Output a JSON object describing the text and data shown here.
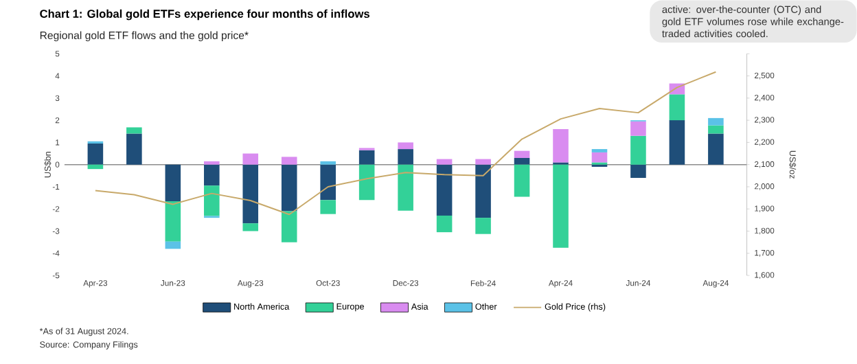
{
  "chart_data": {
    "type": "bar",
    "stacked": true,
    "title": "Chart 1: Global gold ETFs experience four months of inflows",
    "subtitle": "Regional gold ETF flows and the gold price*",
    "ylabel": "US$bn",
    "y2label": "US$/oz",
    "categories": [
      "Apr-23",
      null,
      "Jun-23",
      null,
      "Aug-23",
      null,
      "Oct-23",
      null,
      "Dec-23",
      null,
      "Feb-24",
      null,
      "Apr-24",
      null,
      "Jun-24",
      null,
      "Aug-24"
    ],
    "series": [
      {
        "name": "North America",
        "color": "#1f4e79",
        "values": [
          0.95,
          1.4,
          -1.65,
          -0.95,
          -2.65,
          -2.1,
          -1.6,
          0.65,
          0.7,
          -2.3,
          -2.4,
          0.3,
          0.1,
          -0.1,
          -0.6,
          2.0,
          1.4
        ]
      },
      {
        "name": "Europe",
        "color": "#33d198",
        "values": [
          -0.2,
          0.28,
          -1.82,
          -1.37,
          -0.35,
          -1.4,
          -0.63,
          -1.6,
          -2.08,
          -0.75,
          -0.73,
          -1.45,
          -3.75,
          0.1,
          1.3,
          1.17,
          0.37
        ]
      },
      {
        "name": "Asia",
        "color": "#d98cf0",
        "values": [
          null,
          null,
          null,
          0.15,
          0.5,
          0.35,
          null,
          0.1,
          0.3,
          0.25,
          0.25,
          0.32,
          1.5,
          0.45,
          0.65,
          0.49,
          null
        ]
      },
      {
        "name": "Other",
        "color": "#5bc2e7",
        "values": [
          0.1,
          null,
          -0.33,
          -0.08,
          null,
          null,
          0.15,
          null,
          null,
          null,
          null,
          null,
          null,
          0.15,
          0.05,
          null,
          0.33
        ]
      },
      {
        "name": "Gold Price (rhs)",
        "color": "#c8a96a",
        "type": "line",
        "axis": "y2",
        "values": [
          1983,
          1964,
          1921,
          1970,
          1938,
          1875,
          2000,
          2036,
          2064,
          2055,
          2050,
          2215,
          2306,
          2353,
          2334,
          2448,
          2518
        ]
      }
    ],
    "ylim": [
      -5,
      5
    ],
    "yticks": [
      -5,
      -4,
      -3,
      -2,
      -1,
      0,
      1,
      2,
      3,
      4,
      5
    ],
    "y2lim": [
      1600,
      2600
    ],
    "y2ticks": [
      {
        "value": 1600,
        "label": "1,600"
      },
      {
        "value": 1700,
        "label": "1,700"
      },
      {
        "value": 1800,
        "label": "1,800"
      },
      {
        "value": 1900,
        "label": "1,900"
      },
      {
        "value": 2000,
        "label": "2,000"
      },
      {
        "value": 2100,
        "label": "2,100"
      },
      {
        "value": 2200,
        "label": "2,200"
      },
      {
        "value": 2300,
        "label": "2,300"
      },
      {
        "value": 2400,
        "label": "2,400"
      },
      {
        "value": 2500,
        "label": "2,500"
      },
      {
        "value": 2600,
        "label": null
      }
    ],
    "legend": "bottom",
    "annotations": [
      "active: over-the-counter (OTC) and gold ETF volumes rose while exchange-traded activities cooled.",
      "*As of 31 August 2024.",
      "Source: Company Filings"
    ]
  }
}
